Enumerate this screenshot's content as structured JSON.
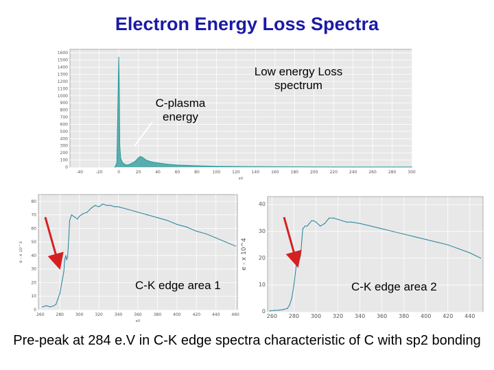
{
  "slide": {
    "title": "Electron Energy Loss Spectra",
    "caption": "Pre-peak at 284 e.V in C-K edge spectra characteristic of C with sp2 bonding"
  },
  "annotations": {
    "c_plasma": "C-plasma energy",
    "low_loss": "Low  energy Loss spectrum",
    "edge1": "C-K edge area 1",
    "edge2": "C-K edge area 2"
  },
  "colors": {
    "title": "#1a1aa6",
    "spectrum": "#2a9a9a",
    "spectrum2": "#1f7f9a",
    "arrow": "#d42020",
    "plot_bg": "#e8e8e8"
  },
  "chart_data": [
    {
      "type": "line",
      "name": "low-loss",
      "xlabel": "eV",
      "xticks": [
        -40,
        -20,
        0,
        20,
        40,
        60,
        80,
        100,
        120,
        140,
        160,
        180,
        200,
        220,
        240,
        260,
        280,
        300
      ],
      "yticks": [
        0,
        100,
        200,
        300,
        400,
        500,
        600,
        700,
        800,
        900,
        1000,
        1100,
        1200,
        1300,
        1400,
        1500,
        1600
      ],
      "xlim": [
        -50,
        300
      ],
      "ylim": [
        0,
        1650
      ],
      "x": [
        -4,
        -2,
        -1,
        0,
        0.5,
        1,
        2,
        4,
        6,
        8,
        10,
        12,
        14,
        16,
        18,
        20,
        22,
        24,
        26,
        28,
        30,
        35,
        40,
        45,
        50,
        60,
        70,
        80,
        90,
        100,
        120,
        140,
        160,
        180,
        200,
        220,
        240,
        260,
        280,
        300
      ],
      "y": [
        0,
        60,
        800,
        1540,
        1100,
        300,
        120,
        60,
        40,
        30,
        35,
        45,
        60,
        75,
        100,
        130,
        150,
        140,
        120,
        100,
        90,
        70,
        60,
        50,
        40,
        30,
        25,
        20,
        15,
        12,
        10,
        8,
        6,
        5,
        4,
        3,
        3,
        2,
        2,
        2
      ]
    },
    {
      "type": "line",
      "name": "area1",
      "xlabel": "eV",
      "ylabel": "e - x 10^3",
      "xticks": [
        260,
        280,
        300,
        320,
        340,
        360,
        380,
        400,
        420,
        440,
        460
      ],
      "yticks": [
        0,
        10,
        20,
        30,
        40,
        50,
        60,
        70,
        80
      ],
      "xlim": [
        258,
        462
      ],
      "ylim": [
        0,
        85
      ],
      "x": [
        262,
        266,
        270,
        274,
        276,
        278,
        280,
        282,
        284,
        285,
        286,
        287,
        288,
        289,
        290,
        292,
        294,
        296,
        298,
        300,
        304,
        308,
        312,
        316,
        320,
        324,
        328,
        332,
        336,
        340,
        350,
        360,
        370,
        380,
        390,
        400,
        410,
        420,
        430,
        440,
        450,
        460
      ],
      "y": [
        2,
        3,
        2,
        3,
        4,
        8,
        12,
        20,
        28,
        37,
        40,
        37,
        39,
        52,
        66,
        70,
        69,
        68,
        67,
        69,
        71,
        72,
        75,
        77,
        76,
        78,
        77,
        77,
        76,
        76,
        74,
        72,
        70,
        68,
        66,
        63,
        61,
        58,
        56,
        53,
        50,
        47
      ]
    },
    {
      "type": "line",
      "name": "area2",
      "xlabel": "",
      "ylabel": "e - x 10^4",
      "xticks": [
        260,
        280,
        300,
        320,
        340,
        360,
        380,
        400,
        420,
        440
      ],
      "yticks": [
        0,
        10,
        20,
        30,
        40
      ],
      "xlim": [
        256,
        452
      ],
      "ylim": [
        0,
        43
      ],
      "x": [
        258,
        262,
        266,
        270,
        274,
        276,
        278,
        280,
        282,
        283,
        284,
        285,
        286,
        287,
        288,
        290,
        292,
        294,
        296,
        298,
        300,
        304,
        308,
        312,
        316,
        320,
        324,
        328,
        332,
        340,
        350,
        360,
        370,
        380,
        390,
        400,
        410,
        420,
        430,
        440,
        450
      ],
      "y": [
        0.3,
        0.5,
        0.6,
        0.8,
        1.2,
        2.5,
        5,
        10,
        17,
        19.5,
        20,
        19.5,
        21,
        26,
        31,
        32,
        32,
        33,
        34,
        34,
        33.5,
        32,
        33,
        35,
        35,
        34.5,
        34,
        33.5,
        33.5,
        33,
        32,
        31,
        30,
        29,
        28,
        27,
        26,
        25,
        23.5,
        22,
        20
      ]
    }
  ]
}
